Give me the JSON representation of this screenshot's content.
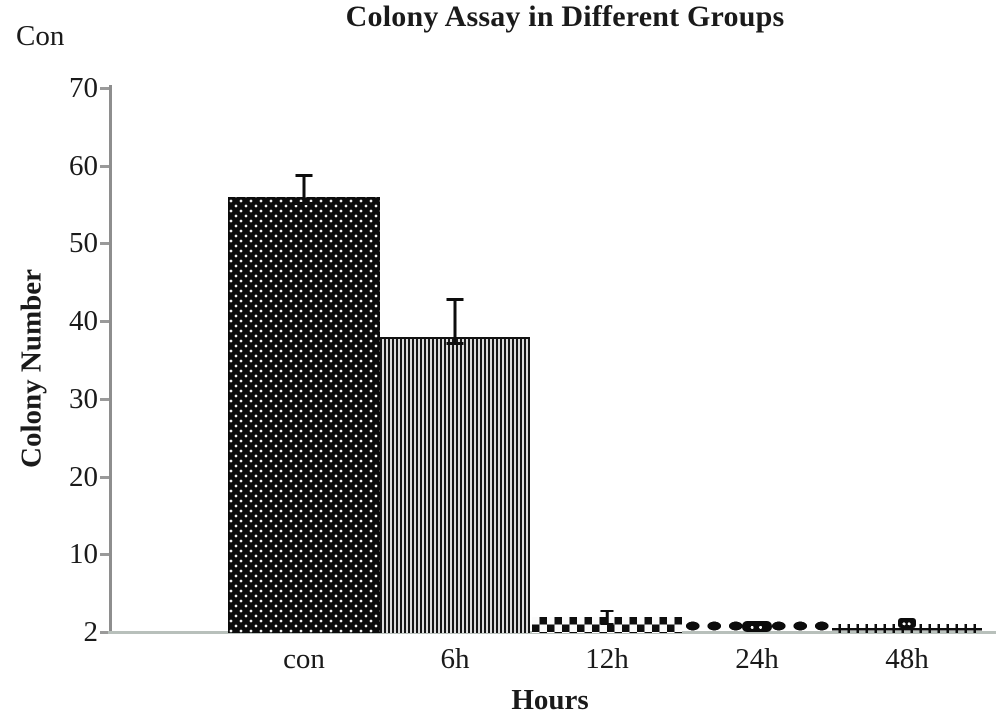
{
  "corner_label": "Con",
  "chart_data": {
    "type": "bar",
    "title": "Colony Assay in Different Groups",
    "xlabel": "Hours",
    "ylabel": "Colony Number",
    "categories": [
      "con",
      "6h",
      "12h",
      "24h",
      "48h"
    ],
    "values": [
      56,
      38,
      2,
      1.8,
      1.2
    ],
    "errors_plus": [
      3,
      5,
      1,
      0.6,
      0.5
    ],
    "y_ticks": [
      "70",
      "60",
      "50",
      "40",
      "30",
      "20",
      "10",
      "2"
    ],
    "ylim": [
      0,
      70
    ],
    "axis_note": "major ticks every 10, baseline tick labeled 2",
    "bar_patterns": [
      "white-dots-on-black",
      "vertical-black-stripes",
      "black-white-checkerboard",
      "black-diamond-row",
      "black-cross-ticks"
    ],
    "bar_color": "#0d0d0d",
    "axis_color": "#8e8e8e",
    "baseline_color": "#b8c0bb",
    "text_color": "#1a1a1a",
    "grid": false,
    "legend": false
  }
}
